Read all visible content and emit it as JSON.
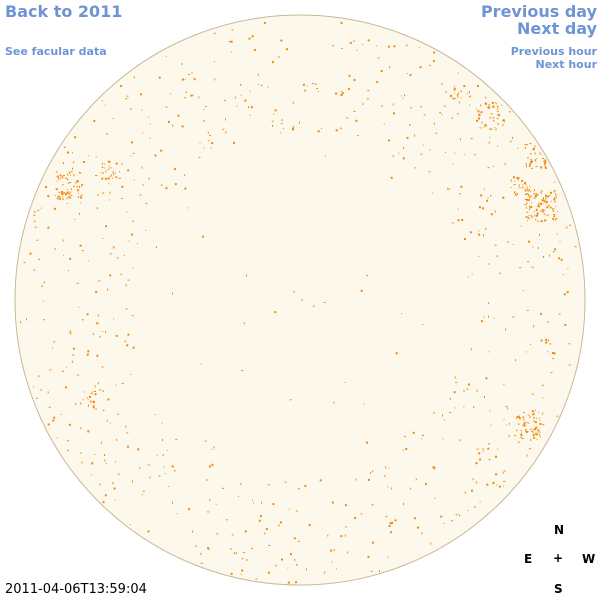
{
  "nav": {
    "back_label": "Back to 2011",
    "facular_label": "See facular data",
    "prev_day_label": "Previous day",
    "next_day_label": "Next day",
    "prev_hour_label": "Previous hour",
    "next_hour_label": "Next hour"
  },
  "timestamp": "2011-04-06T13:59:04",
  "compass": {
    "n": "N",
    "s": "S",
    "e": "E",
    "w": "W",
    "center": "+"
  },
  "colors": {
    "link": "#6f94d6",
    "disk_fill": "#fdf8ec",
    "disk_edge": "#c8b898",
    "feature": "#ef8a10"
  }
}
